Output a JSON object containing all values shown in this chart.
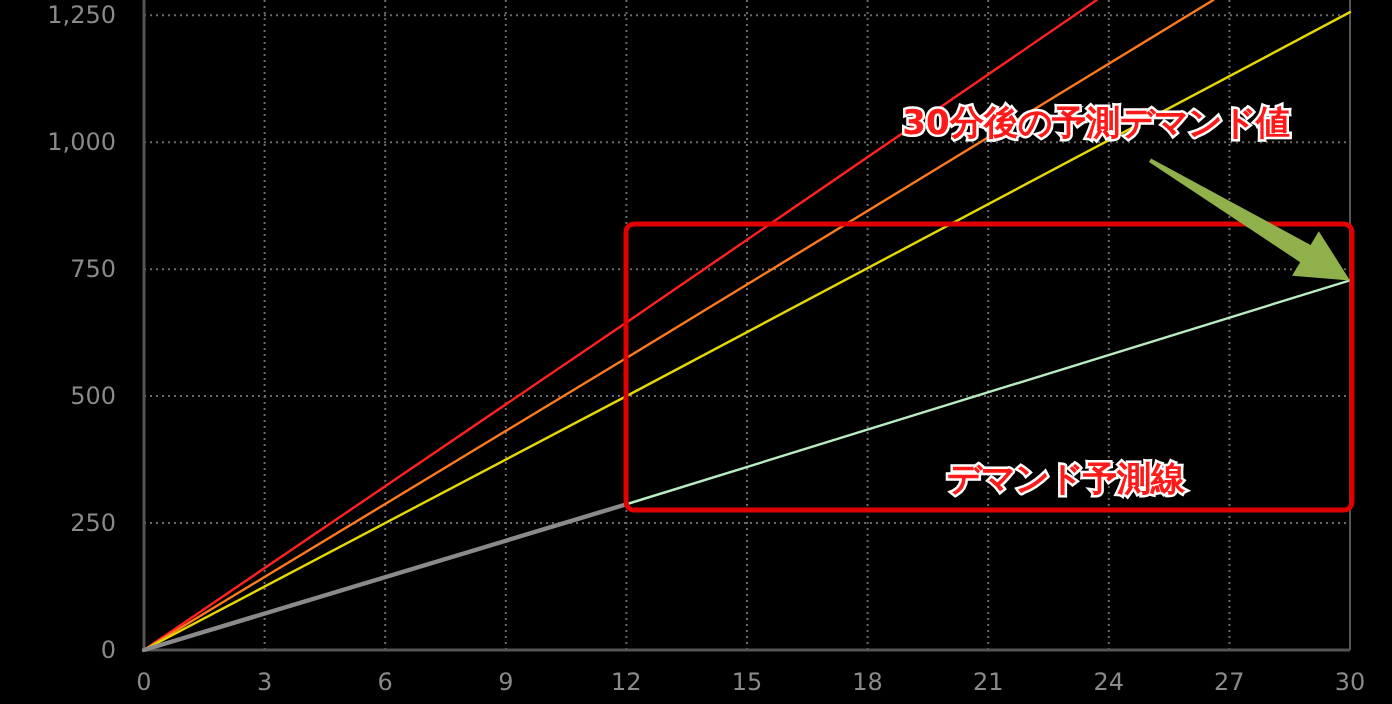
{
  "chart_data": {
    "type": "line",
    "xlim": [
      0,
      30
    ],
    "xticks": [
      0,
      3,
      6,
      9,
      12,
      15,
      18,
      21,
      24,
      27,
      30
    ],
    "ylim": [
      0,
      1280
    ],
    "yticks": [
      0,
      250,
      500,
      750,
      {
        "value": 1000,
        "label": "1,000"
      },
      {
        "value": 1250,
        "label": "1,250"
      }
    ],
    "grid": true,
    "series": [
      {
        "color": "#ff2020",
        "x": [
          0,
          12,
          23.7
        ],
        "values": [
          0,
          645,
          1280
        ]
      },
      {
        "color": "#ff7a1a",
        "x": [
          0,
          12,
          26.6
        ],
        "values": [
          0,
          575,
          1280
        ]
      },
      {
        "color": "#e6d800",
        "x": [
          0,
          12,
          30
        ],
        "values": [
          0,
          500,
          1256
        ]
      },
      {
        "color": "#8a8a8a",
        "x": [
          0,
          12
        ],
        "values": [
          0,
          287
        ]
      },
      {
        "color": "#b8ecc0",
        "x": [
          12,
          30
        ],
        "values": [
          287,
          728
        ]
      }
    ],
    "annotations": [
      "30分後の予測デマンド値",
      "デマンド予測線"
    ]
  }
}
